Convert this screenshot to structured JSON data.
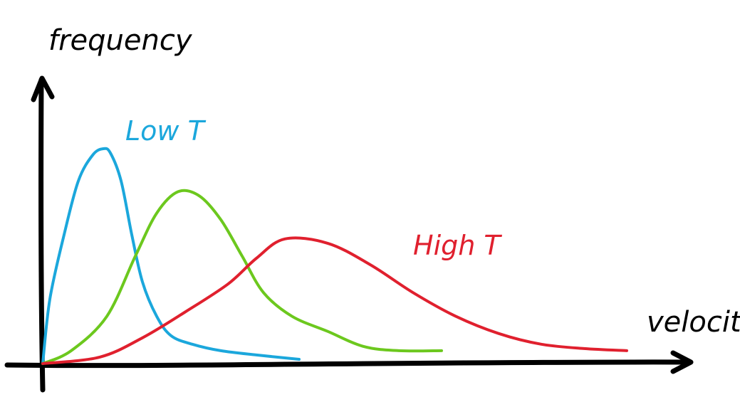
{
  "chart_data": {
    "type": "line",
    "xlabel": "velocity",
    "ylabel": "frequency",
    "xlim": [
      0,
      1
    ],
    "ylim": [
      0,
      1
    ],
    "grid": false,
    "legend": "inline",
    "ticks": false,
    "series": [
      {
        "name": "Low T",
        "color": "#1ba7dc",
        "x": [
          0.0,
          0.01,
          0.03,
          0.05,
          0.07,
          0.085,
          0.095,
          0.11,
          0.125,
          0.14,
          0.16,
          0.18,
          0.21,
          0.25,
          0.3,
          0.36
        ],
        "y": [
          0.0,
          0.3,
          0.6,
          0.85,
          0.97,
          1.0,
          0.98,
          0.85,
          0.6,
          0.38,
          0.22,
          0.13,
          0.09,
          0.06,
          0.04,
          0.02
        ]
      },
      {
        "name": "",
        "color": "#6cc81e",
        "x": [
          0.0,
          0.04,
          0.09,
          0.13,
          0.16,
          0.19,
          0.22,
          0.25,
          0.28,
          0.31,
          0.35,
          0.4,
          0.45,
          0.5,
          0.56
        ],
        "y": [
          0.0,
          0.06,
          0.22,
          0.5,
          0.7,
          0.8,
          0.78,
          0.67,
          0.5,
          0.33,
          0.22,
          0.15,
          0.08,
          0.06,
          0.06
        ]
      },
      {
        "name": "High T",
        "color": "#e0202e",
        "x": [
          0.0,
          0.08,
          0.14,
          0.2,
          0.26,
          0.3,
          0.34,
          0.4,
          0.46,
          0.52,
          0.58,
          0.64,
          0.7,
          0.76,
          0.82
        ],
        "y": [
          0.0,
          0.03,
          0.12,
          0.24,
          0.37,
          0.49,
          0.58,
          0.56,
          0.46,
          0.33,
          0.22,
          0.14,
          0.09,
          0.07,
          0.06
        ]
      }
    ]
  }
}
